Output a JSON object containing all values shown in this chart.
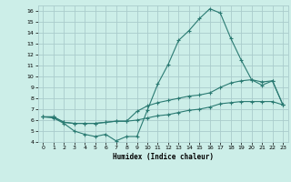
{
  "title": "",
  "xlabel": "Humidex (Indice chaleur)",
  "bg_color": "#cceee8",
  "grid_color": "#aacccc",
  "line_color": "#2a7a72",
  "xlim": [
    -0.5,
    23.5
  ],
  "ylim": [
    4,
    16.5
  ],
  "xticks": [
    0,
    1,
    2,
    3,
    4,
    5,
    6,
    7,
    8,
    9,
    10,
    11,
    12,
    13,
    14,
    15,
    16,
    17,
    18,
    19,
    20,
    21,
    22,
    23
  ],
  "yticks": [
    4,
    5,
    6,
    7,
    8,
    9,
    10,
    11,
    12,
    13,
    14,
    15,
    16
  ],
  "line1_x": [
    0,
    1,
    2,
    3,
    4,
    5,
    6,
    7,
    8,
    9,
    10,
    11,
    12,
    13,
    14,
    15,
    16,
    17,
    18,
    19,
    20,
    21,
    22,
    23
  ],
  "line1_y": [
    6.3,
    6.2,
    5.7,
    5.0,
    4.7,
    4.5,
    4.7,
    4.1,
    4.5,
    4.5,
    6.9,
    9.3,
    11.1,
    13.3,
    14.2,
    15.3,
    16.2,
    15.8,
    13.5,
    11.5,
    9.7,
    9.2,
    9.6,
    7.4
  ],
  "line2_x": [
    0,
    1,
    2,
    3,
    4,
    5,
    6,
    7,
    8,
    9,
    10,
    11,
    12,
    13,
    14,
    15,
    16,
    17,
    18,
    19,
    20,
    21,
    22,
    23
  ],
  "line2_y": [
    6.3,
    6.3,
    5.8,
    5.7,
    5.7,
    5.7,
    5.8,
    5.9,
    5.9,
    6.8,
    7.3,
    7.6,
    7.8,
    8.0,
    8.2,
    8.3,
    8.5,
    9.0,
    9.4,
    9.6,
    9.7,
    9.5,
    9.6,
    7.4
  ],
  "line3_x": [
    0,
    1,
    2,
    3,
    4,
    5,
    6,
    7,
    8,
    9,
    10,
    11,
    12,
    13,
    14,
    15,
    16,
    17,
    18,
    19,
    20,
    21,
    22,
    23
  ],
  "line3_y": [
    6.3,
    6.3,
    5.8,
    5.7,
    5.7,
    5.7,
    5.8,
    5.9,
    5.9,
    6.0,
    6.2,
    6.4,
    6.5,
    6.7,
    6.9,
    7.0,
    7.2,
    7.5,
    7.6,
    7.7,
    7.7,
    7.7,
    7.7,
    7.4
  ]
}
